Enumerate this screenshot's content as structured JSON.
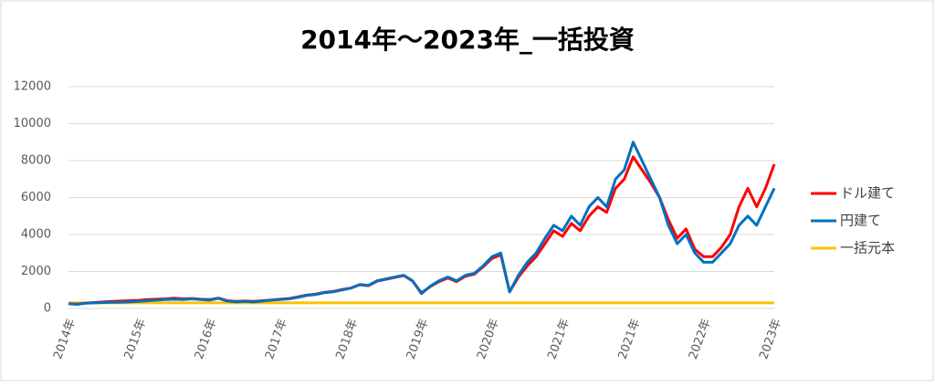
{
  "chart_data": {
    "type": "line",
    "title": "2014年～2023年_一括投資",
    "categories": [
      "2014年",
      null,
      null,
      null,
      null,
      null,
      null,
      null,
      "2015年",
      null,
      null,
      null,
      null,
      null,
      null,
      null,
      "2016年",
      null,
      null,
      null,
      null,
      null,
      null,
      null,
      "2017年",
      null,
      null,
      null,
      null,
      null,
      null,
      null,
      "2018年",
      null,
      null,
      null,
      null,
      null,
      null,
      null,
      "2019年",
      null,
      null,
      null,
      null,
      null,
      null,
      null,
      "2020年",
      null,
      null,
      null,
      null,
      null,
      null,
      null,
      "2021年",
      null,
      null,
      null,
      null,
      null,
      null,
      null,
      "2021年",
      null,
      null,
      null,
      null,
      null,
      null,
      null,
      "2022年",
      null,
      null,
      null,
      null,
      null,
      null,
      null,
      "2023年"
    ],
    "series": [
      {
        "name": "ドル建て",
        "color": "#ff0000",
        "values": [
          260,
          230,
          290,
          320,
          350,
          380,
          400,
          420,
          440,
          480,
          500,
          520,
          560,
          520,
          540,
          500,
          480,
          560,
          420,
          380,
          400,
          380,
          420,
          460,
          500,
          540,
          620,
          720,
          770,
          870,
          920,
          1020,
          1100,
          1280,
          1230,
          1480,
          1580,
          1680,
          1780,
          1480,
          850,
          1180,
          1450,
          1650,
          1450,
          1750,
          1850,
          2250,
          2700,
          2900,
          900,
          1700,
          2300,
          2800,
          3500,
          4200,
          3900,
          4600,
          4200,
          5000,
          5500,
          5200,
          6500,
          7000,
          8200,
          7500,
          6800,
          6000,
          4800,
          3800,
          4300,
          3200,
          2800,
          2800,
          3300,
          4000,
          5500,
          6500,
          5500,
          6500,
          7800
        ]
      },
      {
        "name": "円建て",
        "color": "#0070c0",
        "values": [
          250,
          220,
          280,
          300,
          320,
          330,
          340,
          360,
          380,
          420,
          450,
          480,
          500,
          480,
          520,
          480,
          450,
          550,
          400,
          350,
          380,
          350,
          400,
          450,
          480,
          520,
          600,
          700,
          750,
          850,
          900,
          1000,
          1100,
          1300,
          1250,
          1500,
          1600,
          1700,
          1800,
          1500,
          800,
          1200,
          1500,
          1700,
          1500,
          1800,
          1900,
          2300,
          2800,
          3000,
          900,
          1800,
          2500,
          3000,
          3800,
          4500,
          4200,
          5000,
          4500,
          5500,
          6000,
          5500,
          7000,
          7500,
          9000,
          8000,
          7000,
          6000,
          4500,
          3500,
          4000,
          3000,
          2500,
          2500,
          3000,
          3500,
          4500,
          5000,
          4500,
          5500,
          6500
        ]
      },
      {
        "name": "一括元本",
        "color": "#ffc000",
        "values": [
          300,
          300,
          300,
          300,
          300,
          300,
          300,
          300,
          300,
          300,
          300,
          300,
          300,
          300,
          300,
          300,
          300,
          300,
          300,
          300,
          300,
          300,
          300,
          300,
          300,
          300,
          300,
          300,
          300,
          300,
          300,
          300,
          300,
          300,
          300,
          300,
          300,
          300,
          300,
          300,
          300,
          300,
          300,
          300,
          300,
          300,
          300,
          300,
          300,
          300,
          300,
          300,
          300,
          300,
          300,
          300,
          300,
          300,
          300,
          300,
          300,
          300,
          300,
          300,
          300,
          300,
          300,
          300,
          300,
          300,
          300,
          300,
          300,
          300,
          300,
          300,
          300,
          300,
          300,
          300,
          300
        ]
      }
    ],
    "ylim": [
      0,
      12000
    ],
    "yticks": [
      0,
      2000,
      4000,
      6000,
      8000,
      10000,
      12000
    ],
    "grid": true,
    "legend": "right"
  }
}
